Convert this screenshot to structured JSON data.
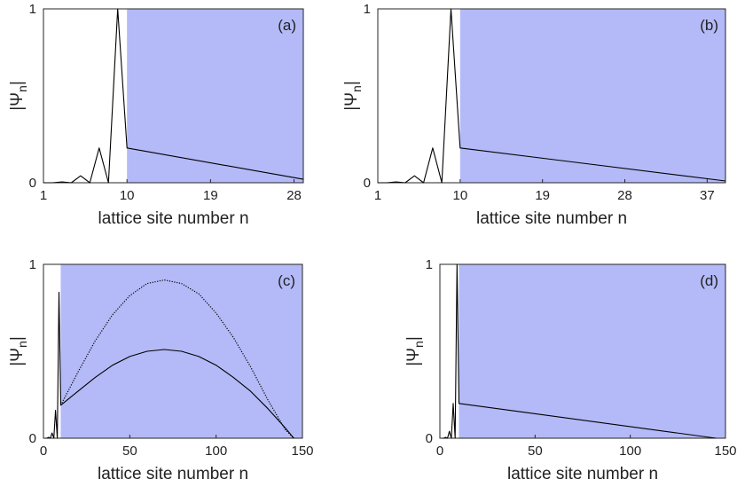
{
  "colors": {
    "shade": "#b3baf7",
    "line": "#000000",
    "axis": "#262626"
  },
  "chart_data": [
    {
      "type": "line",
      "panel_label": "(a)",
      "xlabel": "lattice site number n",
      "ylabel": "|Ψ",
      "ylabel_sub": "n",
      "ylabel_close": "|",
      "xlim": [
        1,
        29
      ],
      "ylim": [
        0,
        1
      ],
      "xticks": [
        1,
        10,
        19,
        28
      ],
      "yticks": [
        0,
        1
      ],
      "shade_from": 10,
      "series": [
        {
          "style": "solid",
          "x": [
            1,
            2,
            3,
            4,
            5,
            6,
            7,
            8,
            9,
            10,
            29
          ],
          "y": [
            0,
            0,
            0.005,
            0,
            0.04,
            0,
            0.2,
            0,
            1,
            0.2,
            0.02
          ]
        }
      ]
    },
    {
      "type": "line",
      "panel_label": "(b)",
      "xlabel": "lattice site number n",
      "ylabel": "|Ψ",
      "ylabel_sub": "n",
      "ylabel_close": "|",
      "xlim": [
        1,
        39
      ],
      "ylim": [
        0,
        1
      ],
      "xticks": [
        1,
        10,
        19,
        28,
        37
      ],
      "yticks": [
        0,
        1
      ],
      "shade_from": 10,
      "series": [
        {
          "style": "solid",
          "x": [
            1,
            2,
            3,
            4,
            5,
            6,
            7,
            8,
            9,
            10,
            39
          ],
          "y": [
            0,
            0,
            0.005,
            0,
            0.04,
            0,
            0.2,
            0,
            1,
            0.2,
            0.01
          ]
        }
      ]
    },
    {
      "type": "line",
      "panel_label": "(c)",
      "xlabel": "lattice site number n",
      "ylabel": "|Ψ",
      "ylabel_sub": "n",
      "ylabel_close": "|",
      "xlim": [
        0,
        150
      ],
      "ylim": [
        0,
        1
      ],
      "xticks": [
        0,
        50,
        100,
        150
      ],
      "yticks": [
        0,
        1
      ],
      "shade_from": 10,
      "series": [
        {
          "style": "solid",
          "x": [
            1,
            2,
            3,
            4,
            5,
            6,
            7,
            8,
            9,
            10,
            20,
            30,
            40,
            50,
            60,
            70,
            80,
            90,
            100,
            110,
            120,
            130,
            140,
            145
          ],
          "y": [
            0,
            0,
            0.005,
            0,
            0.03,
            0,
            0.16,
            0,
            0.84,
            0.19,
            0.27,
            0.35,
            0.42,
            0.47,
            0.5,
            0.51,
            0.5,
            0.47,
            0.42,
            0.35,
            0.27,
            0.17,
            0.06,
            0
          ]
        },
        {
          "style": "dotted",
          "x": [
            10,
            20,
            30,
            40,
            50,
            60,
            70,
            80,
            90,
            100,
            110,
            120,
            130,
            140,
            145
          ],
          "y": [
            0.19,
            0.38,
            0.56,
            0.71,
            0.82,
            0.89,
            0.91,
            0.89,
            0.83,
            0.72,
            0.58,
            0.41,
            0.22,
            0.05,
            0
          ]
        }
      ]
    },
    {
      "type": "line",
      "panel_label": "(d)",
      "xlabel": "lattice site number n",
      "ylabel": "|Ψ",
      "ylabel_sub": "n",
      "ylabel_close": "|",
      "xlim": [
        0,
        150
      ],
      "ylim": [
        0,
        1
      ],
      "xticks": [
        0,
        50,
        100,
        150
      ],
      "yticks": [
        0,
        1
      ],
      "shade_from": 10,
      "series": [
        {
          "style": "solid",
          "x": [
            1,
            2,
            3,
            4,
            5,
            6,
            7,
            8,
            9,
            10,
            145
          ],
          "y": [
            0,
            0,
            0.005,
            0,
            0.04,
            0,
            0.2,
            0,
            1,
            0.2,
            0
          ]
        }
      ]
    }
  ]
}
